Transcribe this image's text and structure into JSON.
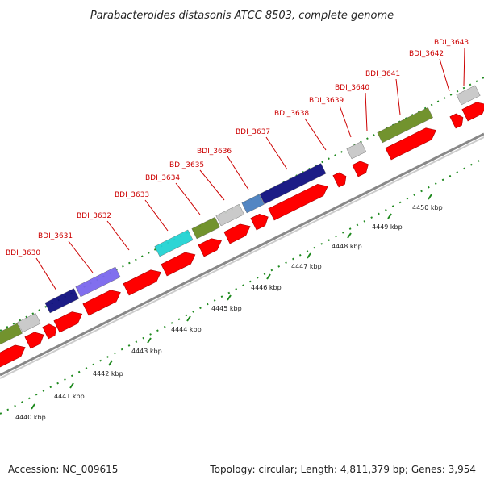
{
  "title": "Parabacteroides distasonis ATCC 8503, complete genome",
  "accession": "Accession: NC_009615",
  "topology": "Topology: circular; Length: 4,811,379 bp; Genes: 3,954",
  "colors": {
    "forward_red": "#ff0000",
    "label_red": "#cc0000",
    "tick_green": "#1f8a1f",
    "backbone_gray": "#999999",
    "navy": "#101080",
    "purple": "#7b68ee",
    "cyan": "#22d3d3",
    "olive": "#6b8e23",
    "steel": "#4a80c0",
    "light_gray": "#c8c8c8"
  },
  "gene_labels": [
    "BDI_3630",
    "BDI_3631",
    "BDI_3632",
    "BDI_3633",
    "BDI_3634",
    "BDI_3635",
    "BDI_3636",
    "BDI_3637",
    "BDI_3638",
    "BDI_3639",
    "BDI_3640",
    "BDI_3641",
    "BDI_3642",
    "BDI_3643"
  ],
  "scale_labels": [
    "4440 kbp",
    "4441 kbp",
    "4442 kbp",
    "4443 kbp",
    "4444 kbp",
    "4445 kbp",
    "4446 kbp",
    "4447 kbp",
    "4448 kbp",
    "4449 kbp",
    "4450 kbp"
  ]
}
